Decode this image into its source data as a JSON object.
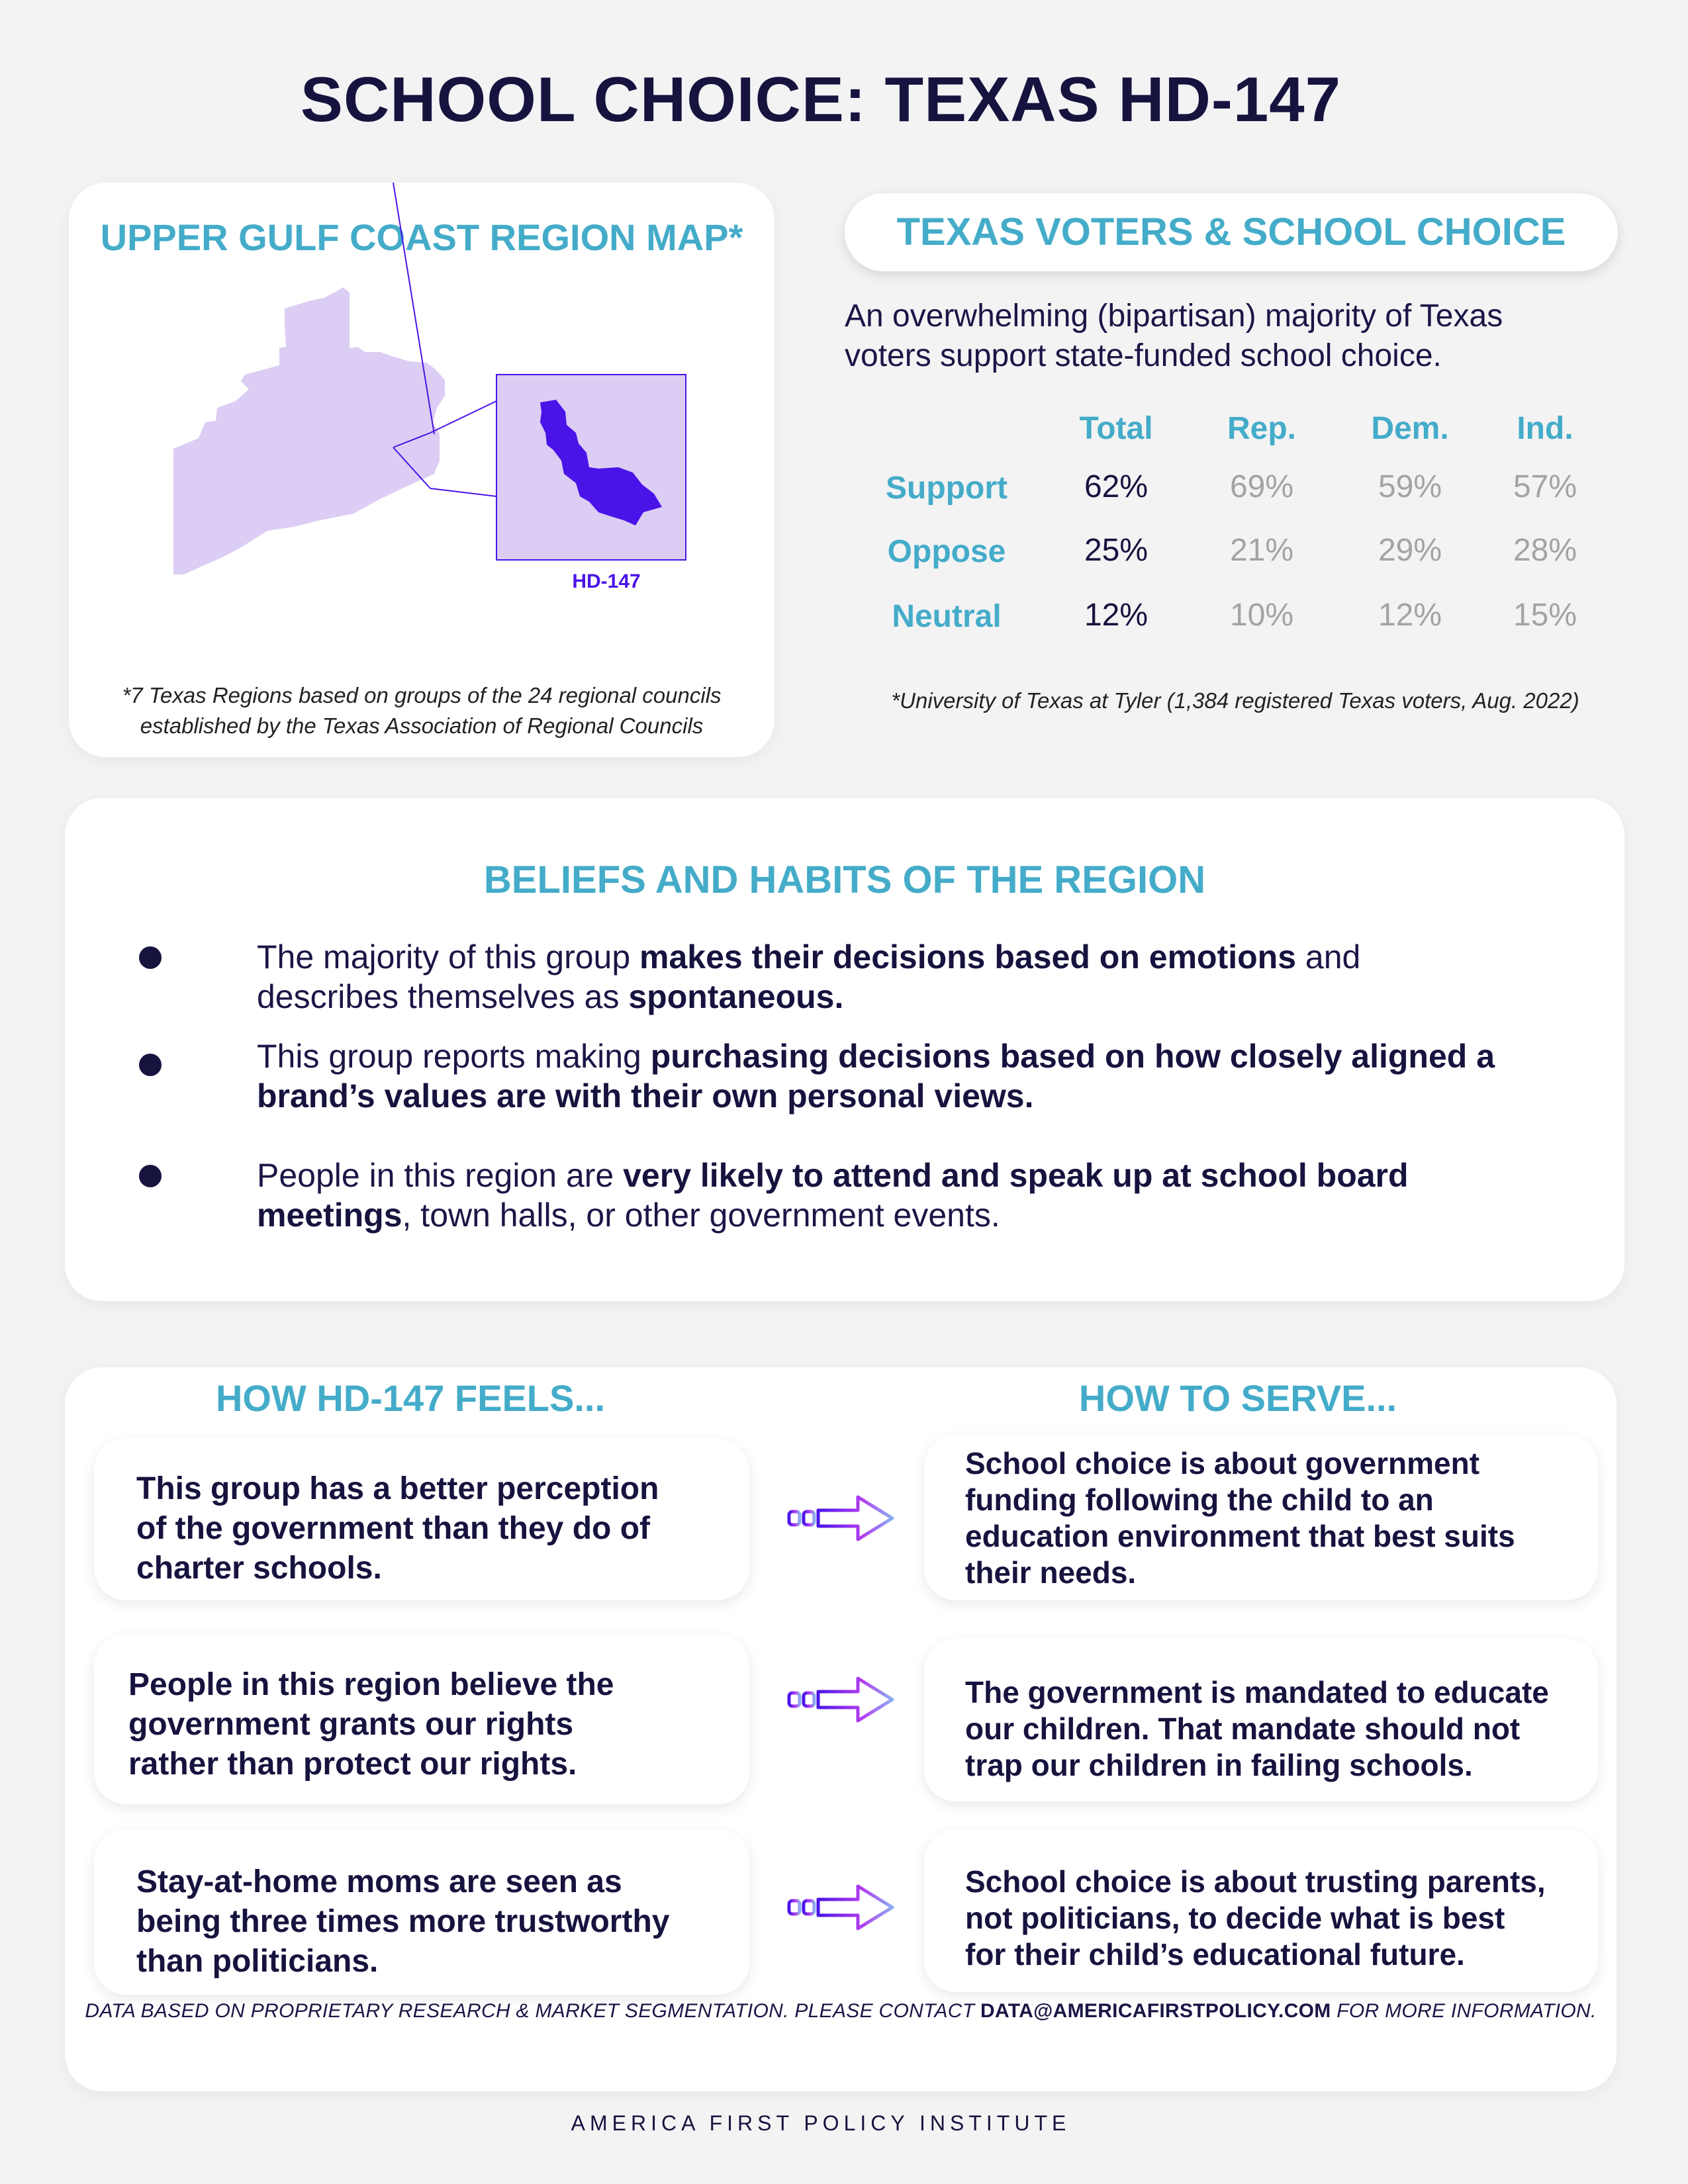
{
  "title": "SCHOOL CHOICE: TEXAS HD-147",
  "map": {
    "title": "UPPER GULF COAST REGION MAP*",
    "inset_label": "HD-147",
    "footnote_line1": "*7 Texas Regions based on groups of the 24 regional councils",
    "footnote_line2": "established by the Texas Association of Regional Councils",
    "colors": {
      "region": "#dbcdf3",
      "district": "#4a14e8",
      "inset_border": "#4a14e8"
    }
  },
  "voters": {
    "heading": "TEXAS VOTERS & SCHOOL CHOICE",
    "intro_line1": "An overwhelming (bipartisan) majority of Texas",
    "intro_line2": "voters support state-funded school choice.",
    "columns": [
      "Total",
      "Rep.",
      "Dem.",
      "Ind."
    ],
    "rows": [
      {
        "label": "Support",
        "values": [
          "62%",
          "69%",
          "59%",
          "57%"
        ]
      },
      {
        "label": "Oppose",
        "values": [
          "25%",
          "21%",
          "29%",
          "28%"
        ]
      },
      {
        "label": "Neutral",
        "values": [
          "12%",
          "10%",
          "12%",
          "15%"
        ]
      }
    ],
    "source": "*University of Texas at Tyler (1,384 registered Texas voters, Aug. 2022)"
  },
  "beliefs": {
    "heading": "BELIEFS AND HABITS OF THE REGION",
    "items": [
      {
        "p1": "The majority of this group ",
        "b1": "makes their decisions based on emotions",
        "p2": " and",
        "p3": "describes themselves as ",
        "b2": "spontaneous."
      },
      {
        "p1": "This group reports making ",
        "b1": "purchasing decisions based on how closely aligned a",
        "b2": "brand’s values are with their own personal views."
      },
      {
        "p1": "People in this region are ",
        "b1": "very likely to attend and speak up at school board",
        "b2": "meetings",
        "p2": ", town halls, or other government events."
      }
    ]
  },
  "feels": {
    "left_heading": "HOW HD-147 FEELS...",
    "right_heading": "HOW TO SERVE...",
    "pairs": [
      {
        "feel": [
          "This group has a better perception",
          "of the government than they do of",
          "charter schools."
        ],
        "serve": [
          "School choice is about government",
          "funding following the child to an",
          "education environment that best suits",
          "their needs."
        ]
      },
      {
        "feel": [
          "People in this region believe the",
          "government grants our rights",
          "rather than protect our rights."
        ],
        "serve": [
          "The government is mandated to educate",
          "our children. That mandate should not",
          "trap our children in failing schools."
        ]
      },
      {
        "feel": [
          "Stay-at-home moms are seen as",
          "being three times more trustworthy",
          "than politicians."
        ],
        "serve": [
          "School choice is about trusting parents,",
          "not politicians, to decide what is best",
          "for their child’s educational future."
        ]
      }
    ],
    "arrow_icon": "gradient-arrow-icon",
    "arrow_colors": [
      "#4a14e8",
      "#b43ef0",
      "#8ab0f0"
    ]
  },
  "footer": {
    "note_prefix": "DATA BASED ON PROPRIETARY RESEARCH & MARKET SEGMENTATION. PLEASE CONTACT ",
    "note_email": "DATA@AMERICAFIRSTPOLICY.COM",
    "note_suffix": " FOR MORE INFORMATION.",
    "org": "AMERICA FIRST POLICY INSTITUTE"
  }
}
